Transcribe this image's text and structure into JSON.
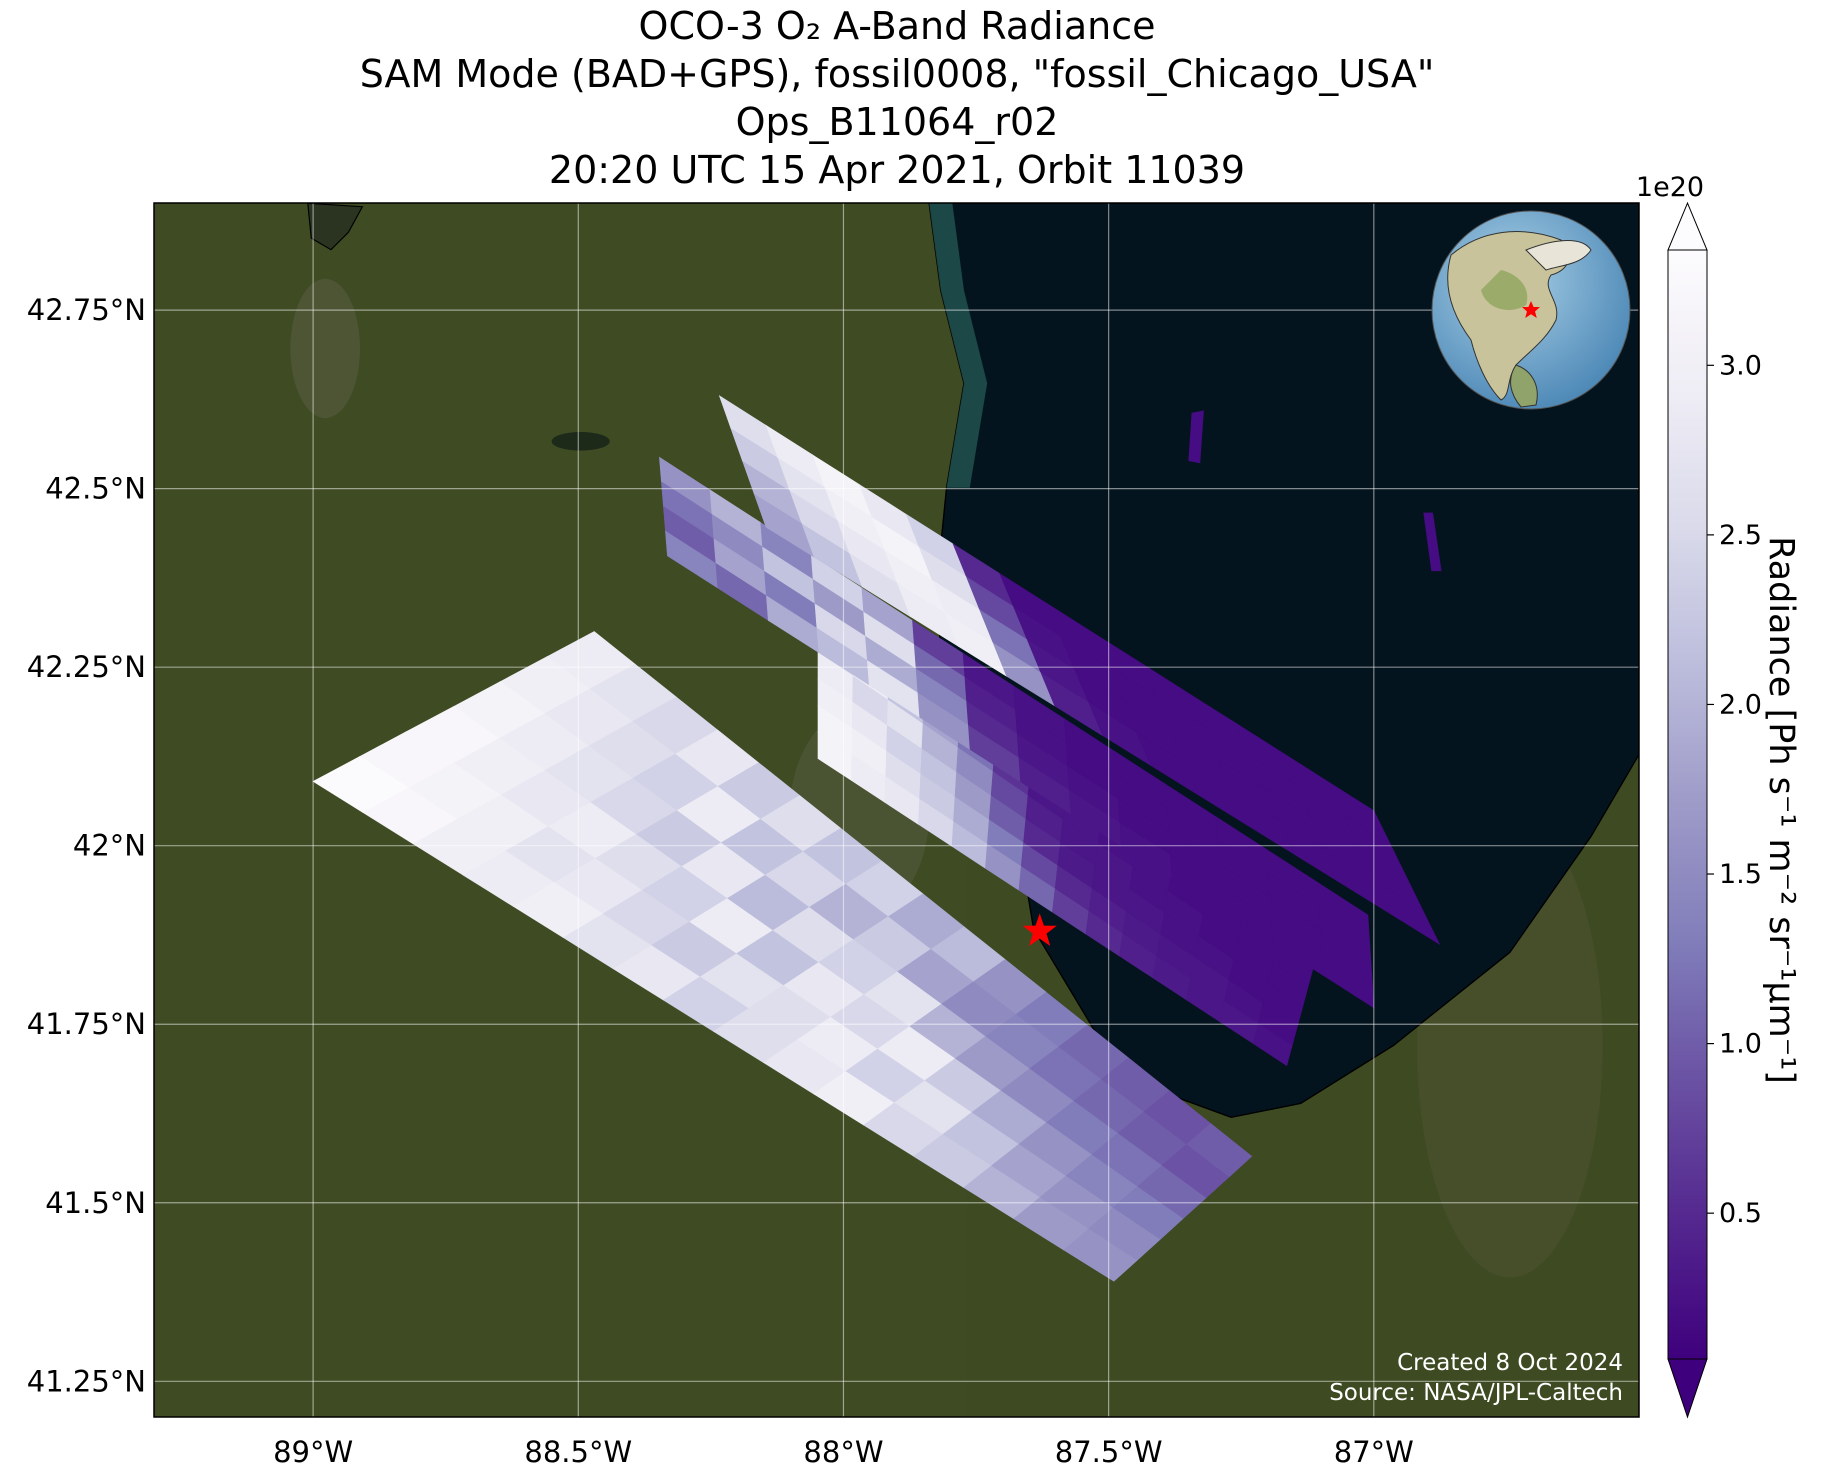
{
  "chart_data": {
    "type": "swath_map",
    "title": [
      "OCO-3 O₂ A-Band Radiance",
      "SAM Mode (BAD+GPS), fossil0008, \"fossil_Chicago_USA\"",
      "Ops_B11064_r02",
      "20:20 UTC 15 Apr 2021, Orbit 11039"
    ],
    "xlim": [
      -89.3,
      -86.5
    ],
    "ylim": [
      41.2,
      42.9
    ],
    "xticks": [
      {
        "value": -89,
        "label": "89°W"
      },
      {
        "value": -88.5,
        "label": "88.5°W"
      },
      {
        "value": -88,
        "label": "88°W"
      },
      {
        "value": -87.5,
        "label": "87.5°W"
      },
      {
        "value": -87,
        "label": "87°W"
      }
    ],
    "yticks": [
      {
        "value": 41.25,
        "label": "41.25°N"
      },
      {
        "value": 41.5,
        "label": "41.5°N"
      },
      {
        "value": 41.75,
        "label": "41.75°N"
      },
      {
        "value": 42,
        "label": "42°N"
      },
      {
        "value": 42.25,
        "label": "42.25°N"
      },
      {
        "value": 42.5,
        "label": "42.5°N"
      },
      {
        "value": 42.75,
        "label": "42.75°N"
      }
    ],
    "grid": true,
    "colorbar": {
      "label": "Radiance [Ph s⁻¹ m⁻² sr⁻¹μm⁻¹]",
      "multiplier": "1e20",
      "clim": [
        0.07,
        3.34
      ],
      "ticks": [
        0.5,
        {
          "value": 1,
          "label": "1.0"
        },
        1.5,
        {
          "value": 2,
          "label": "2.0"
        },
        2.5,
        {
          "value": 3,
          "label": "3.0"
        }
      ],
      "colormap": [
        "#3f007d",
        "#54278f",
        "#6a51a3",
        "#807dba",
        "#9e9ac8",
        "#bcbddc",
        "#dadaeb",
        "#efedf5",
        "#fcfbfd"
      ]
    },
    "site": {
      "lon": -87.63,
      "lat": 41.88,
      "color": "#ff0000"
    },
    "swaths": [
      {
        "corners": [
          [
            -88.47,
            42.3
          ],
          [
            -87.23,
            41.565
          ],
          [
            -87.49,
            41.39
          ],
          [
            -89.0,
            42.09
          ]
        ],
        "values": [
          [
            2.9,
            2.7,
            2.5,
            2.8,
            2.3,
            2.6,
            2.2,
            2.4,
            1.9,
            2.1,
            1.6,
            1.3,
            1.1,
            1.0,
            0.9,
            1.0
          ],
          [
            3.0,
            2.8,
            2.6,
            2.4,
            2.9,
            2.2,
            2.5,
            2.0,
            2.3,
            1.8,
            1.5,
            1.4,
            1.2,
            1.1,
            1.0,
            0.9
          ],
          [
            3.1,
            2.9,
            2.7,
            2.5,
            2.3,
            2.8,
            2.1,
            2.6,
            2.4,
            2.7,
            2.0,
            1.7,
            1.5,
            1.3,
            1.2,
            1.1
          ],
          [
            3.2,
            3.0,
            2.8,
            2.9,
            2.6,
            2.4,
            2.9,
            2.2,
            2.8,
            2.5,
            2.9,
            2.3,
            1.9,
            1.6,
            1.4,
            1.3
          ],
          [
            3.2,
            3.1,
            3.0,
            2.7,
            2.8,
            2.5,
            2.3,
            2.7,
            2.6,
            2.9,
            2.4,
            2.7,
            2.2,
            1.8,
            1.6,
            1.5
          ],
          [
            3.3,
            3.2,
            3.0,
            2.9,
            3.0,
            2.7,
            2.8,
            2.4,
            2.6,
            2.8,
            3.0,
            2.5,
            2.3,
            2.0,
            1.7,
            1.6
          ]
        ]
      },
      {
        "corners": [
          [
            -88.048,
            42.308
          ],
          [
            -87.114,
            41.83
          ],
          [
            -87.164,
            41.692
          ],
          [
            -88.048,
            42.122
          ]
        ],
        "values": [
          [
            2.6,
            2.9,
            2.2,
            1.8,
            1.2,
            0.6,
            0.3,
            0.3,
            0.25,
            0.25,
            0.2,
            0.2,
            0.2,
            0.2
          ],
          [
            2.9,
            2.5,
            2.7,
            2.0,
            1.5,
            0.8,
            0.4,
            0.3,
            0.3,
            0.25,
            0.25,
            0.2,
            0.2,
            0.2
          ],
          [
            3.0,
            2.8,
            2.4,
            2.2,
            1.7,
            1.0,
            0.5,
            0.35,
            0.3,
            0.3,
            0.25,
            0.25,
            0.2,
            0.2
          ],
          [
            3.1,
            3.0,
            2.6,
            2.3,
            1.9,
            1.3,
            0.8,
            0.5,
            0.4,
            0.35,
            0.3,
            0.3,
            0.25,
            0.2
          ],
          [
            3.1,
            2.9,
            2.8,
            2.5,
            2.1,
            1.6,
            1.1,
            0.7,
            0.5,
            0.4,
            0.35,
            0.3,
            0.3,
            0.25
          ]
        ]
      },
      {
        "corners": [
          [
            -88.347,
            42.544
          ],
          [
            -87.011,
            41.903
          ],
          [
            -87.0,
            41.773
          ],
          [
            -88.332,
            42.406
          ]
        ],
        "values": [
          [
            1.6,
            2.0,
            1.4,
            2.4,
            1.8,
            0.7,
            0.3,
            0.25,
            0.2,
            0.2,
            0.2,
            0.2,
            0.2,
            0.2
          ],
          [
            1.2,
            1.5,
            2.2,
            1.7,
            2.6,
            1.1,
            0.4,
            0.25,
            0.2,
            0.2,
            0.2,
            0.2,
            0.2,
            0.2
          ],
          [
            1.0,
            1.8,
            1.3,
            2.5,
            1.9,
            1.4,
            0.5,
            0.3,
            0.25,
            0.2,
            0.2,
            0.2,
            0.2,
            0.2
          ],
          [
            1.4,
            1.1,
            1.9,
            2.1,
            2.7,
            1.6,
            0.7,
            0.4,
            0.3,
            0.25,
            0.2,
            0.2,
            0.2,
            0.2
          ]
        ]
      },
      {
        "corners": [
          [
            -88.234,
            42.63
          ],
          [
            -87.0,
            42.049
          ],
          [
            -86.876,
            41.862
          ],
          [
            -88.146,
            42.446
          ]
        ],
        "values": [
          [
            2.6,
            2.9,
            3.1,
            2.8,
            2.4,
            0.5,
            0.2,
            0.2,
            0.2,
            0.2,
            0.2,
            0.2,
            0.2,
            0.2
          ],
          [
            2.3,
            2.7,
            3.0,
            3.1,
            2.6,
            0.8,
            0.25,
            0.2,
            0.2,
            0.2,
            0.2,
            0.2,
            0.2,
            0.2
          ],
          [
            2.0,
            2.5,
            2.8,
            3.0,
            2.9,
            1.2,
            0.3,
            0.2,
            0.2,
            0.2,
            0.2,
            0.2,
            0.2,
            0.2
          ],
          [
            1.8,
            2.2,
            2.6,
            2.9,
            3.0,
            1.6,
            0.4,
            0.25,
            0.2,
            0.2,
            0.2,
            0.2,
            0.2,
            0.2
          ]
        ]
      },
      {
        "corners": [
          [
            -87.343,
            42.606
          ],
          [
            -87.321,
            42.609
          ],
          [
            -87.328,
            42.536
          ],
          [
            -87.349,
            42.539
          ]
        ],
        "values": [
          [
            0.2
          ]
        ]
      },
      {
        "corners": [
          [
            -86.906,
            42.466
          ],
          [
            -86.889,
            42.466
          ],
          [
            -86.873,
            42.385
          ],
          [
            -86.891,
            42.385
          ]
        ],
        "values": [
          [
            0.2
          ]
        ]
      }
    ],
    "footer": [
      "Created 8 Oct 2024",
      "Source: NASA/JPL-Caltech"
    ]
  }
}
